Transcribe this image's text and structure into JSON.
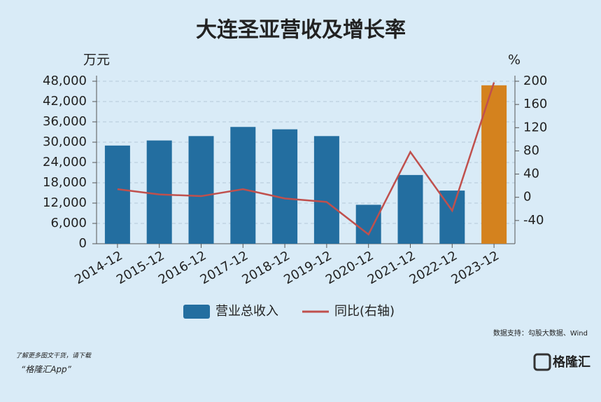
{
  "chart_data": {
    "type": "bar",
    "title": "大连圣亚营收及增长率",
    "y_label": "万元",
    "y2_label": "%",
    "categories": [
      "2014-12",
      "2015-12",
      "2016-12",
      "2017-12",
      "2018-12",
      "2019-12",
      "2020-12",
      "2021-12",
      "2022-12",
      "2023-12"
    ],
    "series": [
      {
        "name": "营业总收入",
        "type": "bar",
        "color": "#236ea0",
        "colors": [
          "#236ea0",
          "#236ea0",
          "#236ea0",
          "#236ea0",
          "#236ea0",
          "#236ea0",
          "#236ea0",
          "#236ea0",
          "#236ea0",
          "#d4821e"
        ],
        "values": [
          29000,
          30500,
          31800,
          34500,
          33800,
          31800,
          11500,
          20300,
          15700,
          46800
        ]
      },
      {
        "name": "同比(右轴)",
        "type": "line",
        "axis": "y2",
        "color": "#c0504d",
        "values": [
          14,
          5,
          2,
          14,
          -2,
          -8,
          -64,
          78,
          -23,
          198
        ]
      }
    ],
    "ylim": [
      0,
      48000
    ],
    "yticks": [
      0,
      {
        "value": 6000,
        "label": "6,000"
      },
      {
        "value": 12000,
        "label": "12,000"
      },
      {
        "value": 18000,
        "label": "18,000"
      },
      {
        "value": 24000,
        "label": "24,000"
      },
      {
        "value": 30000,
        "label": "30,000"
      },
      {
        "value": 36000,
        "label": "36,000"
      },
      {
        "value": 42000,
        "label": "42,000"
      },
      {
        "value": 48000,
        "label": "48,000"
      }
    ],
    "y2lim": [
      -80,
      200
    ],
    "y2ticks": [
      -40,
      0,
      40,
      80,
      120,
      160,
      200
    ],
    "grid": true,
    "legend": "bottom"
  },
  "source": "数据支持：勾股大数据、Wind",
  "footer": {
    "line1": "了解更多图文干货，请下载",
    "line2": "“格隆汇App”"
  },
  "logo": "格隆汇"
}
